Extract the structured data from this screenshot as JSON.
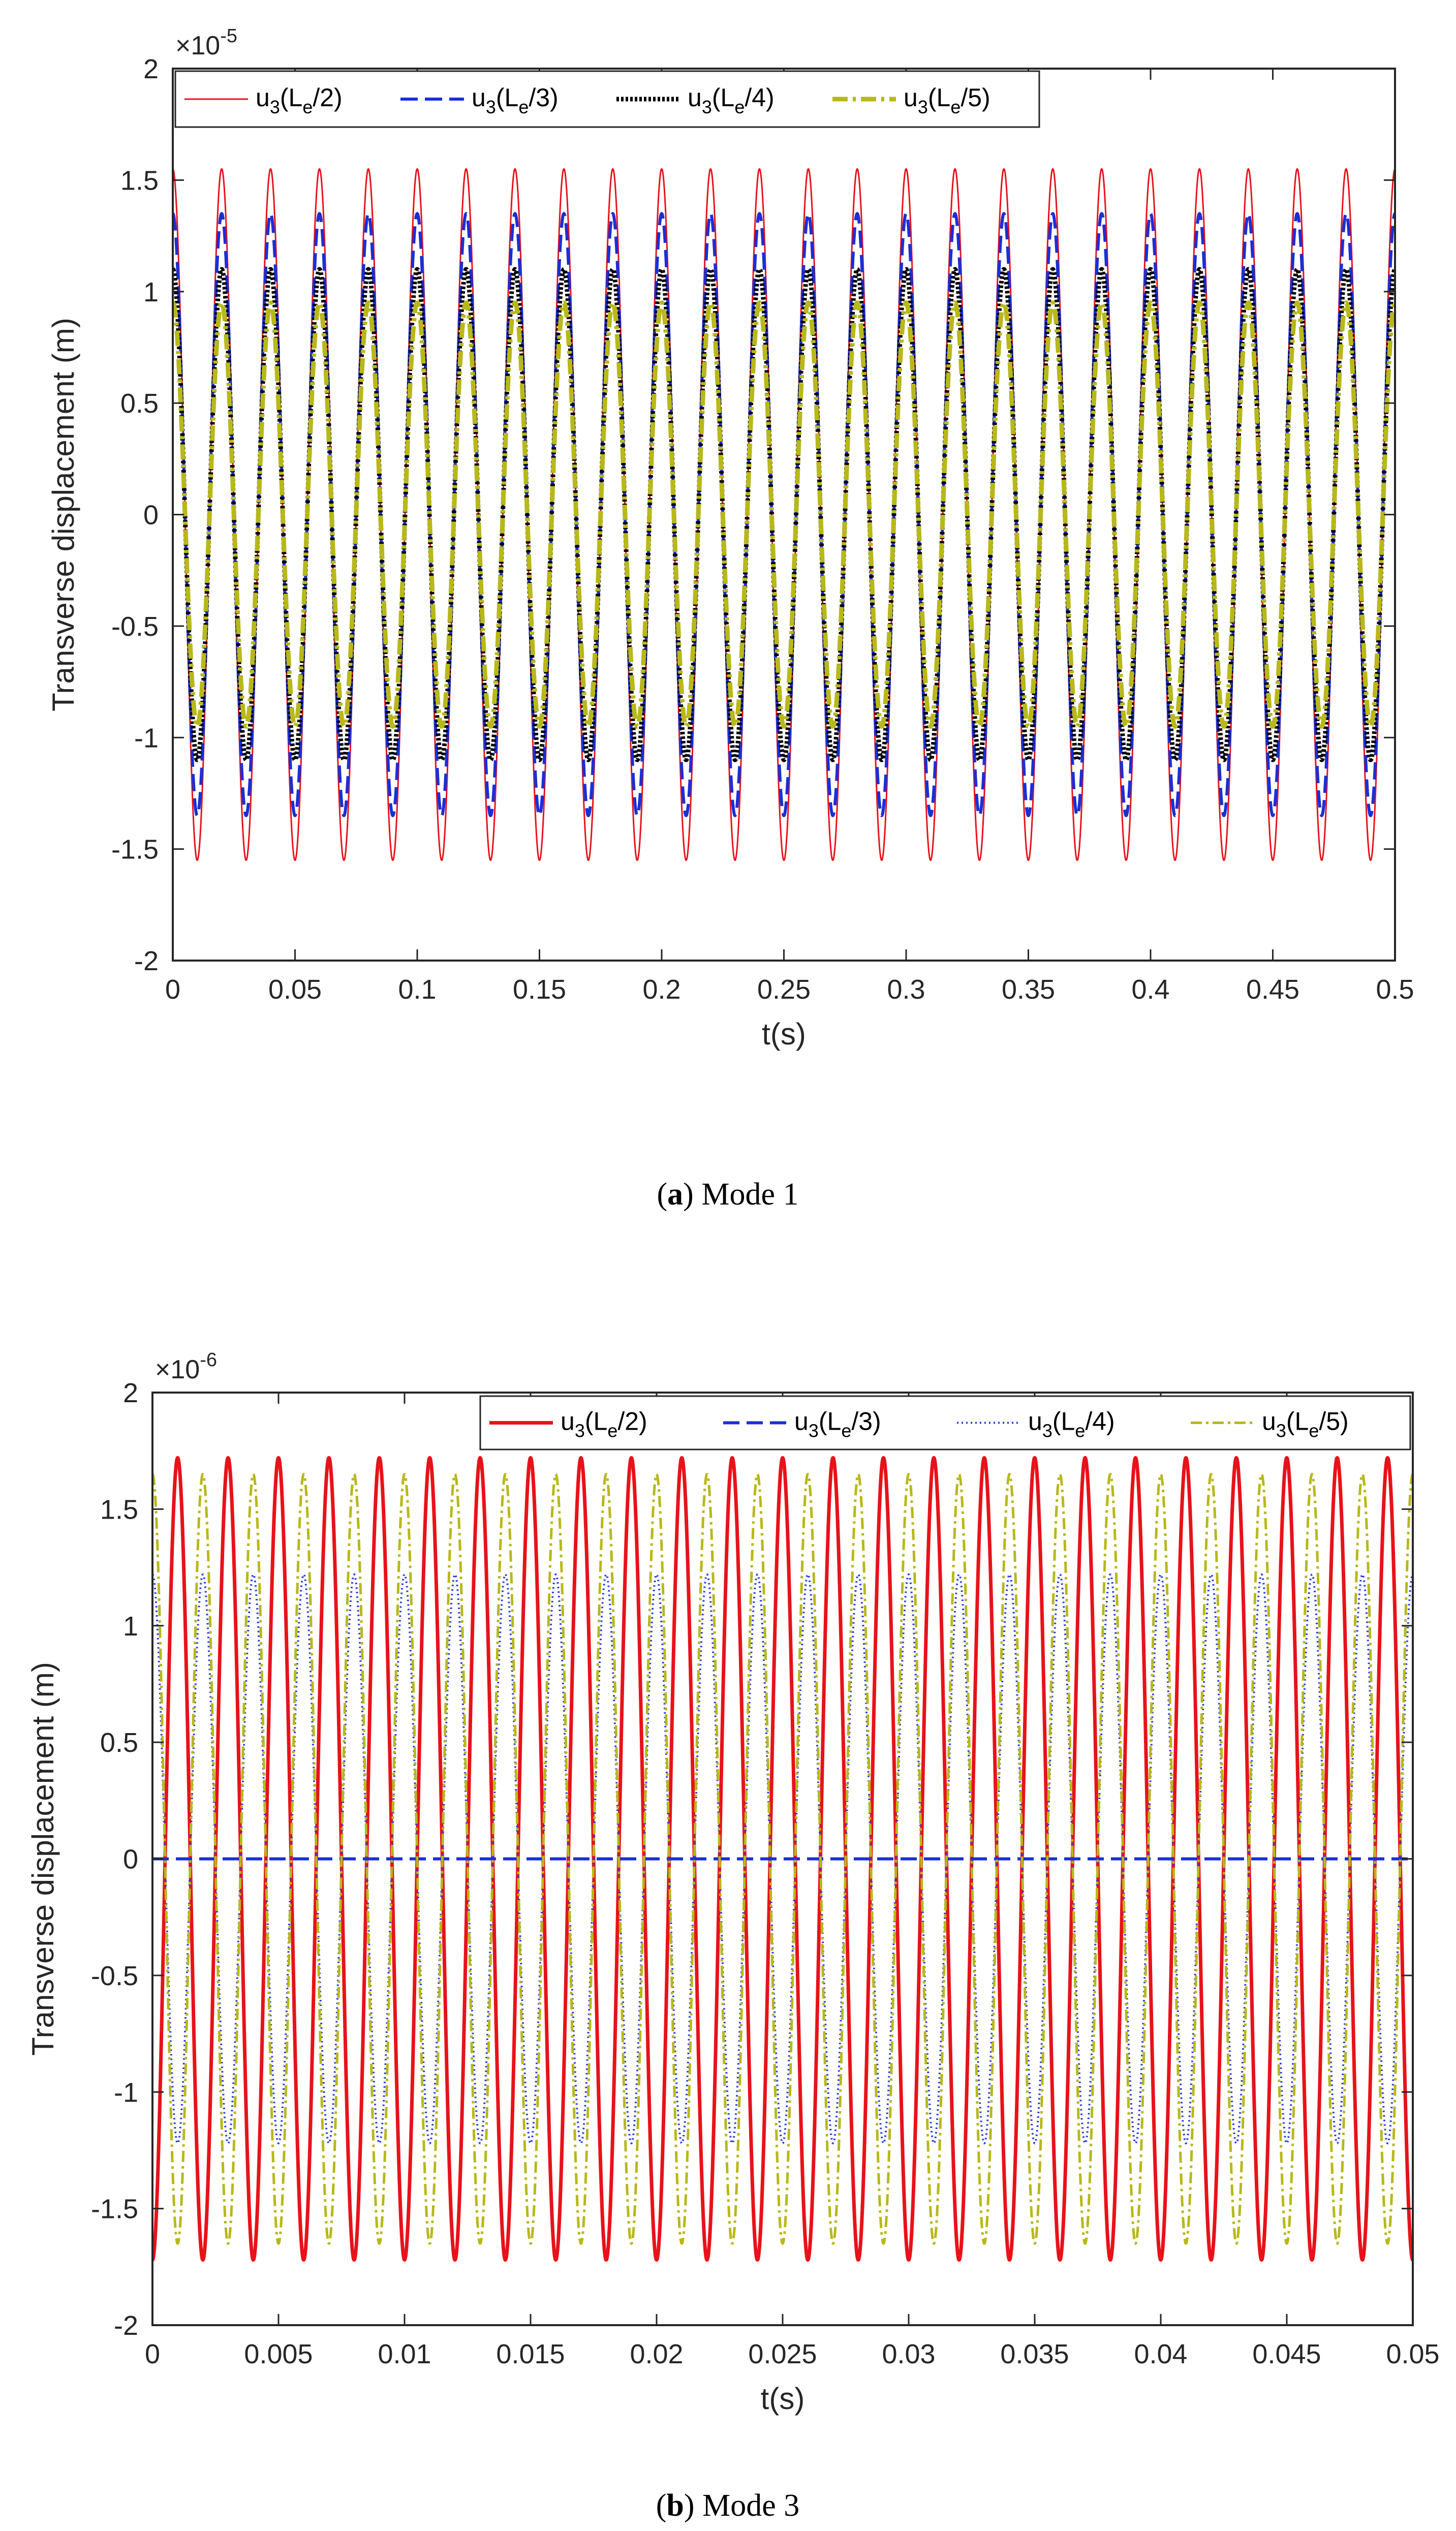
{
  "colors": {
    "red": "#e8121a",
    "blue": "#1a2fd6",
    "black": "#000000",
    "olive": "#b8b81a",
    "dotted_blue": "#2b3de0",
    "axis": "#262626"
  },
  "chart_data": [
    {
      "type": "line",
      "title": "",
      "caption_label": "a",
      "caption_text": " Mode 1",
      "xlabel": "t(s)",
      "ylabel": "Transverse displacement (m)",
      "y_exponent_base": "×10",
      "y_exponent_power": "-5",
      "xlim": [
        0,
        0.5
      ],
      "ylim": [
        -2,
        2
      ],
      "x_ticks": [
        0,
        0.05,
        0.1,
        0.15,
        0.2,
        0.25,
        0.3,
        0.35,
        0.4,
        0.45,
        0.5
      ],
      "x_tick_labels": [
        "0",
        "0.05",
        "0.1",
        "0.15",
        "0.2",
        "0.25",
        "0.3",
        "0.35",
        "0.4",
        "0.45",
        "0.5"
      ],
      "y_ticks": [
        -2,
        -1.5,
        -1,
        -0.5,
        0,
        0.5,
        1,
        1.5,
        2
      ],
      "y_tick_labels": [
        "-2",
        "-1.5",
        "-1",
        "-0.5",
        "0",
        "0.5",
        "1",
        "1.5",
        "2"
      ],
      "legend_position": "top",
      "series": [
        {
          "name": "u3(Le/2)",
          "base": "u",
          "sub": "3",
          "arg_open": "(L",
          "arg_sub": "e",
          "arg_close": "/2)",
          "amplitude": 1.55,
          "frequency": 50,
          "phase_cycles": 0.25,
          "color": "#e8121a",
          "dash": "",
          "stroke_width": 3
        },
        {
          "name": "u3(Le/3)",
          "base": "u",
          "sub": "3",
          "arg_open": "(L",
          "arg_sub": "e",
          "arg_close": "/3)",
          "amplitude": 1.35,
          "frequency": 50,
          "phase_cycles": 0.25,
          "color": "#1a2fd6",
          "dash": "34,14",
          "stroke_width": 6
        },
        {
          "name": "u3(Le/4)",
          "base": "u",
          "sub": "3",
          "arg_open": "(L",
          "arg_sub": "e",
          "arg_close": "/4)",
          "amplitude": 1.1,
          "frequency": 50,
          "phase_cycles": 0.25,
          "color": "#000000",
          "dash": "5,4",
          "stroke_width": 9
        },
        {
          "name": "u3(Le/5)",
          "base": "u",
          "sub": "3",
          "arg_open": "(L",
          "arg_sub": "e",
          "arg_close": "/5)",
          "amplitude": 0.95,
          "frequency": 50,
          "phase_cycles": 0.25,
          "color": "#b8b81a",
          "dash": "30,10,6,10",
          "stroke_width": 9
        }
      ]
    },
    {
      "type": "line",
      "title": "",
      "caption_label": "b",
      "caption_text": " Mode 3",
      "xlabel": "t(s)",
      "ylabel": "Transverse displacement (m)",
      "y_exponent_base": "×10",
      "y_exponent_power": "-6",
      "xlim": [
        0,
        0.05
      ],
      "ylim": [
        -2,
        2
      ],
      "x_ticks": [
        0,
        0.005,
        0.01,
        0.015,
        0.02,
        0.025,
        0.03,
        0.035,
        0.04,
        0.045,
        0.05
      ],
      "x_tick_labels": [
        "0",
        "0.005",
        "0.01",
        "0.015",
        "0.02",
        "0.025",
        "0.03",
        "0.035",
        "0.04",
        "0.045",
        "0.05"
      ],
      "y_ticks": [
        -2,
        -1.5,
        -1,
        -0.5,
        0,
        0.5,
        1,
        1.5,
        2
      ],
      "y_tick_labels": [
        "-2",
        "-1.5",
        "-1",
        "-0.5",
        "0",
        "0.5",
        "1",
        "1.5",
        "2"
      ],
      "legend_position": "top-right",
      "series": [
        {
          "name": "u3(Le/2)",
          "base": "u",
          "sub": "3",
          "arg_open": "(L",
          "arg_sub": "e",
          "arg_close": "/2)",
          "amplitude": 1.72,
          "frequency": 500,
          "phase_cycles": 0.75,
          "color": "#e8121a",
          "dash": "",
          "stroke_width": 7
        },
        {
          "name": "u3(Le/3)",
          "base": "u",
          "sub": "3",
          "arg_open": "(L",
          "arg_sub": "e",
          "arg_close": "/3)",
          "amplitude": 0.0,
          "frequency": 500,
          "phase_cycles": 0.25,
          "color": "#1a2fd6",
          "dash": "32,14",
          "stroke_width": 6
        },
        {
          "name": "u3(Le/4)",
          "base": "u",
          "sub": "3",
          "arg_open": "(L",
          "arg_sub": "e",
          "arg_close": "/4)",
          "amplitude": 1.22,
          "frequency": 500,
          "phase_cycles": 0.25,
          "color": "#2b3de0",
          "dash": "3,6",
          "stroke_width": 4
        },
        {
          "name": "u3(Le/5)",
          "base": "u",
          "sub": "3",
          "arg_open": "(L",
          "arg_sub": "e",
          "arg_close": "/5)",
          "amplitude": 1.65,
          "frequency": 500,
          "phase_cycles": 0.25,
          "color": "#b8b81a",
          "dash": "22,8,5,8",
          "stroke_width": 5
        }
      ]
    }
  ]
}
